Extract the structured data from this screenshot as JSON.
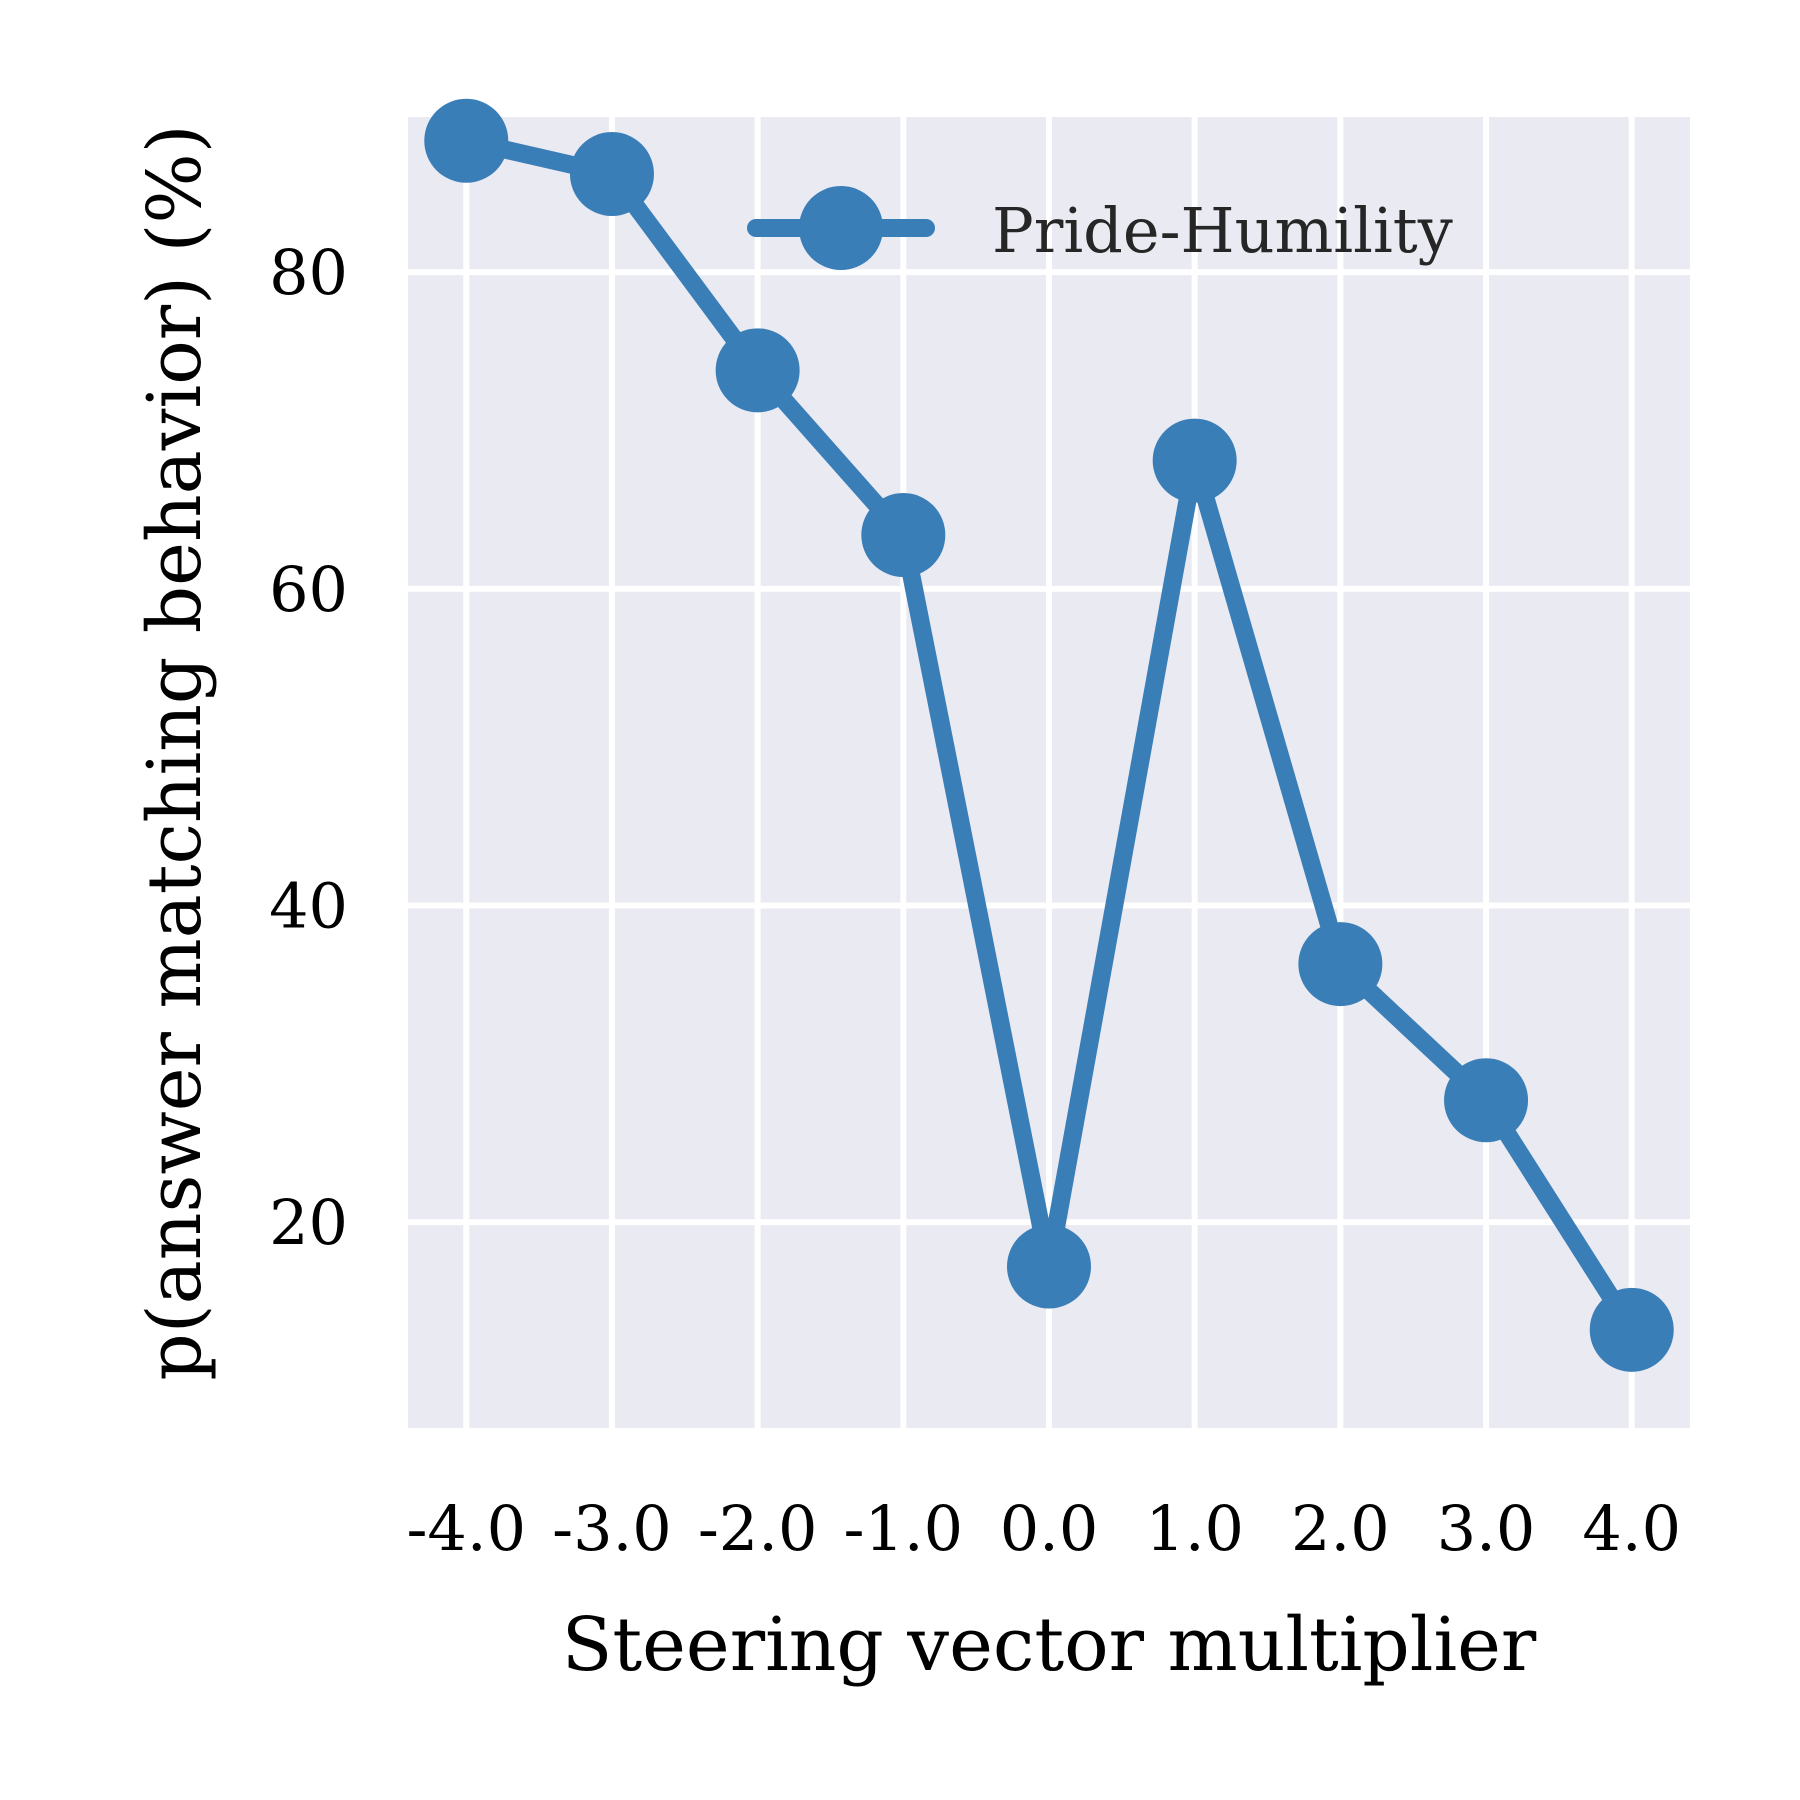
{
  "chart_data": {
    "type": "line",
    "title": "",
    "xlabel": "Steering vector multiplier",
    "ylabel": "p(answer matching behavior) (%)",
    "x": [
      -4.0,
      -3.0,
      -2.0,
      -1.0,
      0.0,
      1.0,
      2.0,
      3.0,
      4.0
    ],
    "x_tick_labels": [
      "-4.0",
      "-3.0",
      "-2.0",
      "-1.0",
      "0.0",
      "1.0",
      "2.0",
      "3.0",
      "4.0"
    ],
    "y_ticks": [
      20,
      40,
      60,
      80
    ],
    "y_tick_labels": [
      "20",
      "40",
      "60",
      "80"
    ],
    "xlim": [
      -4.4,
      4.4
    ],
    "ylim": [
      7.0,
      89.8
    ],
    "grid": true,
    "legend": "upper right",
    "series": [
      {
        "name": "Pride-Humility",
        "color": "#3a7eb8",
        "values": [
          88.3,
          86.2,
          73.8,
          63.4,
          17.2,
          68.1,
          36.3,
          27.7,
          13.2
        ]
      }
    ]
  }
}
